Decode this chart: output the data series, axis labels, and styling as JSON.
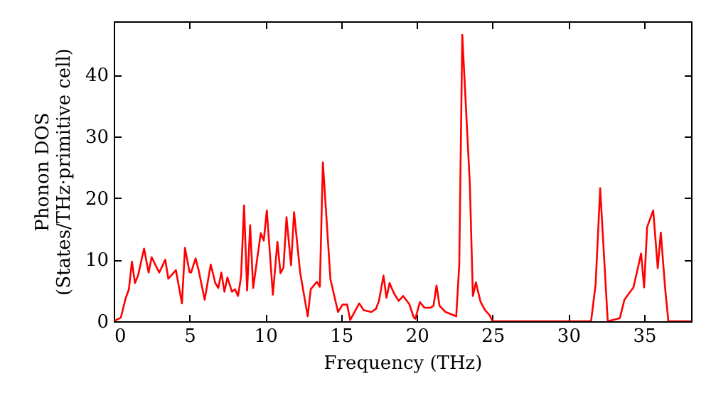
{
  "chart_data": {
    "type": "line",
    "xlabel": "Frequency (THz)",
    "ylabel": "Phonon DOS\n(States/THz·primitive cell)",
    "x": [
      0,
      0.47,
      0.78,
      1.0,
      1.2,
      1.4,
      1.6,
      2.0,
      2.3,
      2.5,
      3.0,
      3.4,
      3.6,
      4.1,
      4.5,
      4.7,
      5.0,
      5.1,
      5.4,
      5.6,
      6.0,
      6.4,
      6.7,
      6.9,
      7.1,
      7.3,
      7.5,
      7.8,
      8.0,
      8.2,
      8.4,
      8.6,
      8.8,
      9.0,
      9.2,
      9.7,
      9.9,
      10.1,
      10.5,
      10.8,
      11.0,
      11.2,
      11.4,
      11.7,
      11.9,
      12.3,
      12.8,
      13.0,
      13.4,
      13.6,
      13.8,
      14.3,
      14.8,
      15.1,
      15.4,
      15.6,
      16.2,
      16.5,
      17.0,
      17.3,
      17.5,
      17.8,
      18.0,
      18.2,
      18.5,
      18.8,
      19.1,
      19.5,
      19.8,
      19.9,
      20.2,
      20.5,
      20.9,
      21.1,
      21.3,
      21.5,
      21.9,
      22.6,
      22.8,
      23.0,
      23.5,
      23.7,
      23.9,
      24.2,
      24.5,
      24.8,
      25.0,
      31.5,
      31.8,
      32.1,
      32.6,
      33.4,
      33.7,
      34.0,
      34.3,
      34.8,
      35.0,
      35.2,
      35.6,
      35.9,
      36.1,
      36.4,
      36.6,
      38.1
    ],
    "series": [
      {
        "color": "#ff0000",
        "values": [
          0,
          0.6,
          3.7,
          5.2,
          9.7,
          6.2,
          7.4,
          11.8,
          7.9,
          10.4,
          7.9,
          10,
          6.9,
          8.3,
          2.9,
          11.9,
          8,
          7.9,
          10.2,
          8.3,
          3.5,
          9.2,
          6.2,
          5.4,
          7.9,
          4.8,
          7.1,
          4.8,
          5.2,
          4.1,
          7.2,
          18.8,
          5,
          15.6,
          5.4,
          14.3,
          13.1,
          18,
          4.3,
          12.9,
          7.8,
          8.7,
          16.9,
          9.1,
          17.7,
          7.9,
          0.8,
          5.2,
          6.4,
          5.6,
          25.8,
          6.8,
          1.5,
          2.7,
          2.7,
          0.2,
          2.9,
          1.8,
          1.5,
          2,
          3.3,
          7.4,
          3.8,
          6.2,
          4.5,
          3.3,
          4.1,
          2.8,
          0.6,
          0.4,
          3.1,
          2.2,
          2.2,
          2.5,
          5.8,
          2.5,
          1.5,
          0.8,
          9.1,
          46.5,
          22.2,
          4.1,
          6.3,
          3.2,
          1.8,
          1,
          0,
          0,
          6,
          21.6,
          0,
          0.5,
          3.5,
          4.5,
          5.5,
          11,
          5.5,
          15.3,
          18,
          8.6,
          14.4,
          5,
          0,
          0
        ]
      }
    ],
    "xlim": [
      0,
      38.1
    ],
    "ylim": [
      0,
      48.7
    ],
    "xticks": [
      0,
      5,
      10,
      15,
      20,
      25,
      30,
      35
    ],
    "yticks": [
      0,
      10,
      20,
      30,
      40
    ],
    "grid": false
  }
}
